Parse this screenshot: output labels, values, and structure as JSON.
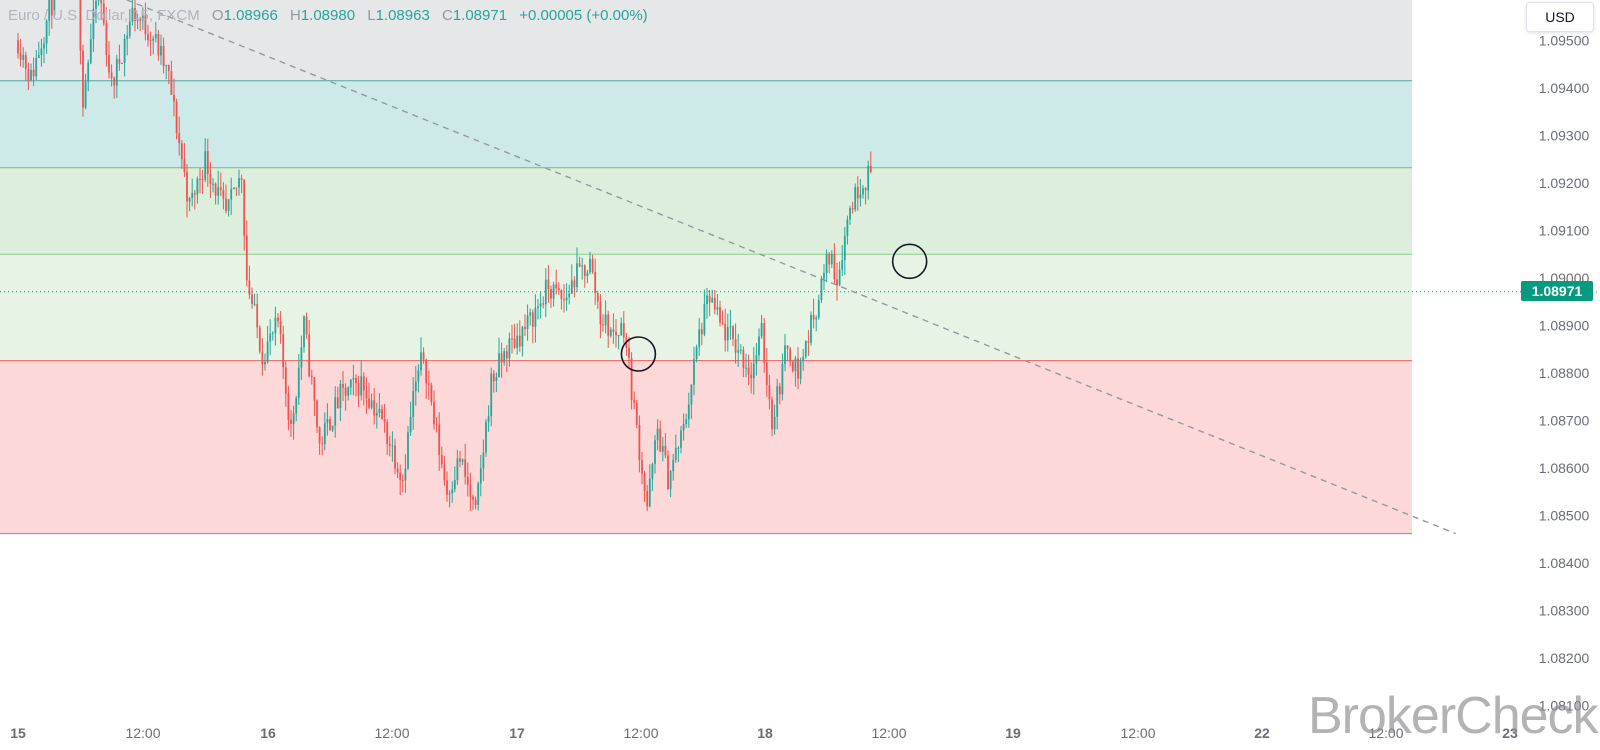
{
  "header": {
    "symbol": "Euro / U.S. Dollar, 15, FXCM",
    "open_label": "O",
    "open_value": "1.08966",
    "high_label": "H",
    "high_value": "1.08980",
    "low_label": "L",
    "low_value": "1.08963",
    "close_label": "C",
    "close_value": "1.08971",
    "change": "+0.00005 (+0.00%)"
  },
  "currency_button": "USD",
  "last_price": "1.08971",
  "watermark": "BrokerCheck",
  "colors": {
    "up": "#26a69a",
    "down": "#ef5350",
    "zone_gray": "#e6e7e9",
    "zone_teal": "#cdeae8",
    "zone_green": "#ddefdc",
    "zone_lightgreen": "#e7f4e5",
    "zone_red": "#fdd8d8",
    "price_badge": "#089981"
  },
  "chart_data": {
    "type": "candlestick",
    "timeframe": "15",
    "x_ticks": [
      "15",
      "12:00",
      "16",
      "12:00",
      "17",
      "12:00",
      "18",
      "12:00",
      "19",
      "12:00",
      "22",
      "12:00",
      "23"
    ],
    "y_ticks": [
      "1.09500",
      "1.09400",
      "1.09300",
      "1.09200",
      "1.09100",
      "1.09000",
      "1.08900",
      "1.08800",
      "1.08700",
      "1.08600",
      "1.08500",
      "1.08400",
      "1.08300",
      "1.08200",
      "1.08100"
    ],
    "ylim": [
      1.08095,
      1.09585
    ],
    "current_price": 1.08971,
    "zones": [
      {
        "from": 1.09415,
        "to": 1.09585,
        "color": "#e6e7e9",
        "border": null
      },
      {
        "from": 1.09232,
        "to": 1.09415,
        "color": "#cdeae8",
        "border": "#4aa8a8"
      },
      {
        "from": 1.0905,
        "to": 1.09232,
        "color": "#ddefdc",
        "border": "#6cc06c"
      },
      {
        "from": 1.08826,
        "to": 1.0905,
        "color": "#e7f4e5",
        "border": "#8ccf8c"
      },
      {
        "from": 1.08462,
        "to": 1.08826,
        "color": "#fdd8d8",
        "border": "#f06060"
      }
    ],
    "trendline": {
      "from": {
        "x": "15 06:30",
        "y": 1.0962
      },
      "to": {
        "x": "22 18:45",
        "y": 1.08462
      },
      "style": "dashed"
    },
    "markers": [
      {
        "type": "circle",
        "x": "17 11:45",
        "y": 1.0884
      },
      {
        "type": "circle",
        "x": "18 14:00",
        "y": 1.09035
      }
    ],
    "price_path": [
      [
        0,
        1.095
      ],
      [
        5,
        1.0942
      ],
      [
        12,
        1.0956
      ],
      [
        22,
        1.0975
      ],
      [
        25,
        1.0938
      ],
      [
        31,
        1.0962
      ],
      [
        36,
        1.094
      ],
      [
        44,
        1.0956
      ],
      [
        52,
        1.0951
      ],
      [
        58,
        1.0942
      ],
      [
        66,
        1.0915
      ],
      [
        72,
        1.0925
      ],
      [
        80,
        1.0913
      ],
      [
        86,
        1.0922
      ],
      [
        88,
        1.09
      ],
      [
        94,
        1.0884
      ],
      [
        100,
        1.089
      ],
      [
        105,
        1.0868
      ],
      [
        110,
        1.089
      ],
      [
        116,
        1.0865
      ],
      [
        124,
        1.0875
      ],
      [
        132,
        1.0878
      ],
      [
        140,
        1.087
      ],
      [
        148,
        1.0858
      ],
      [
        152,
        1.0875
      ],
      [
        156,
        1.0884
      ],
      [
        160,
        1.087
      ],
      [
        165,
        1.0855
      ],
      [
        170,
        1.0862
      ],
      [
        176,
        1.085
      ],
      [
        182,
        1.0878
      ],
      [
        188,
        1.0885
      ],
      [
        196,
        1.089
      ],
      [
        204,
        1.0898
      ],
      [
        210,
        1.0895
      ],
      [
        214,
        1.09
      ],
      [
        220,
        1.0903
      ],
      [
        224,
        1.0892
      ],
      [
        229,
        1.0888
      ],
      [
        233,
        1.089
      ],
      [
        238,
        1.0868
      ],
      [
        242,
        1.0852
      ],
      [
        246,
        1.0868
      ],
      [
        250,
        1.0858
      ],
      [
        256,
        1.0868
      ],
      [
        262,
        1.0888
      ],
      [
        266,
        1.0896
      ],
      [
        270,
        1.089
      ],
      [
        276,
        1.0886
      ],
      [
        282,
        1.088
      ],
      [
        286,
        1.0888
      ],
      [
        290,
        1.087
      ],
      [
        296,
        1.0886
      ],
      [
        300,
        1.088
      ],
      [
        306,
        1.0892
      ],
      [
        312,
        1.0905
      ],
      [
        315,
        1.09
      ],
      [
        320,
        1.0915
      ],
      [
        324,
        1.092
      ],
      [
        328,
        1.0922
      ]
    ]
  }
}
